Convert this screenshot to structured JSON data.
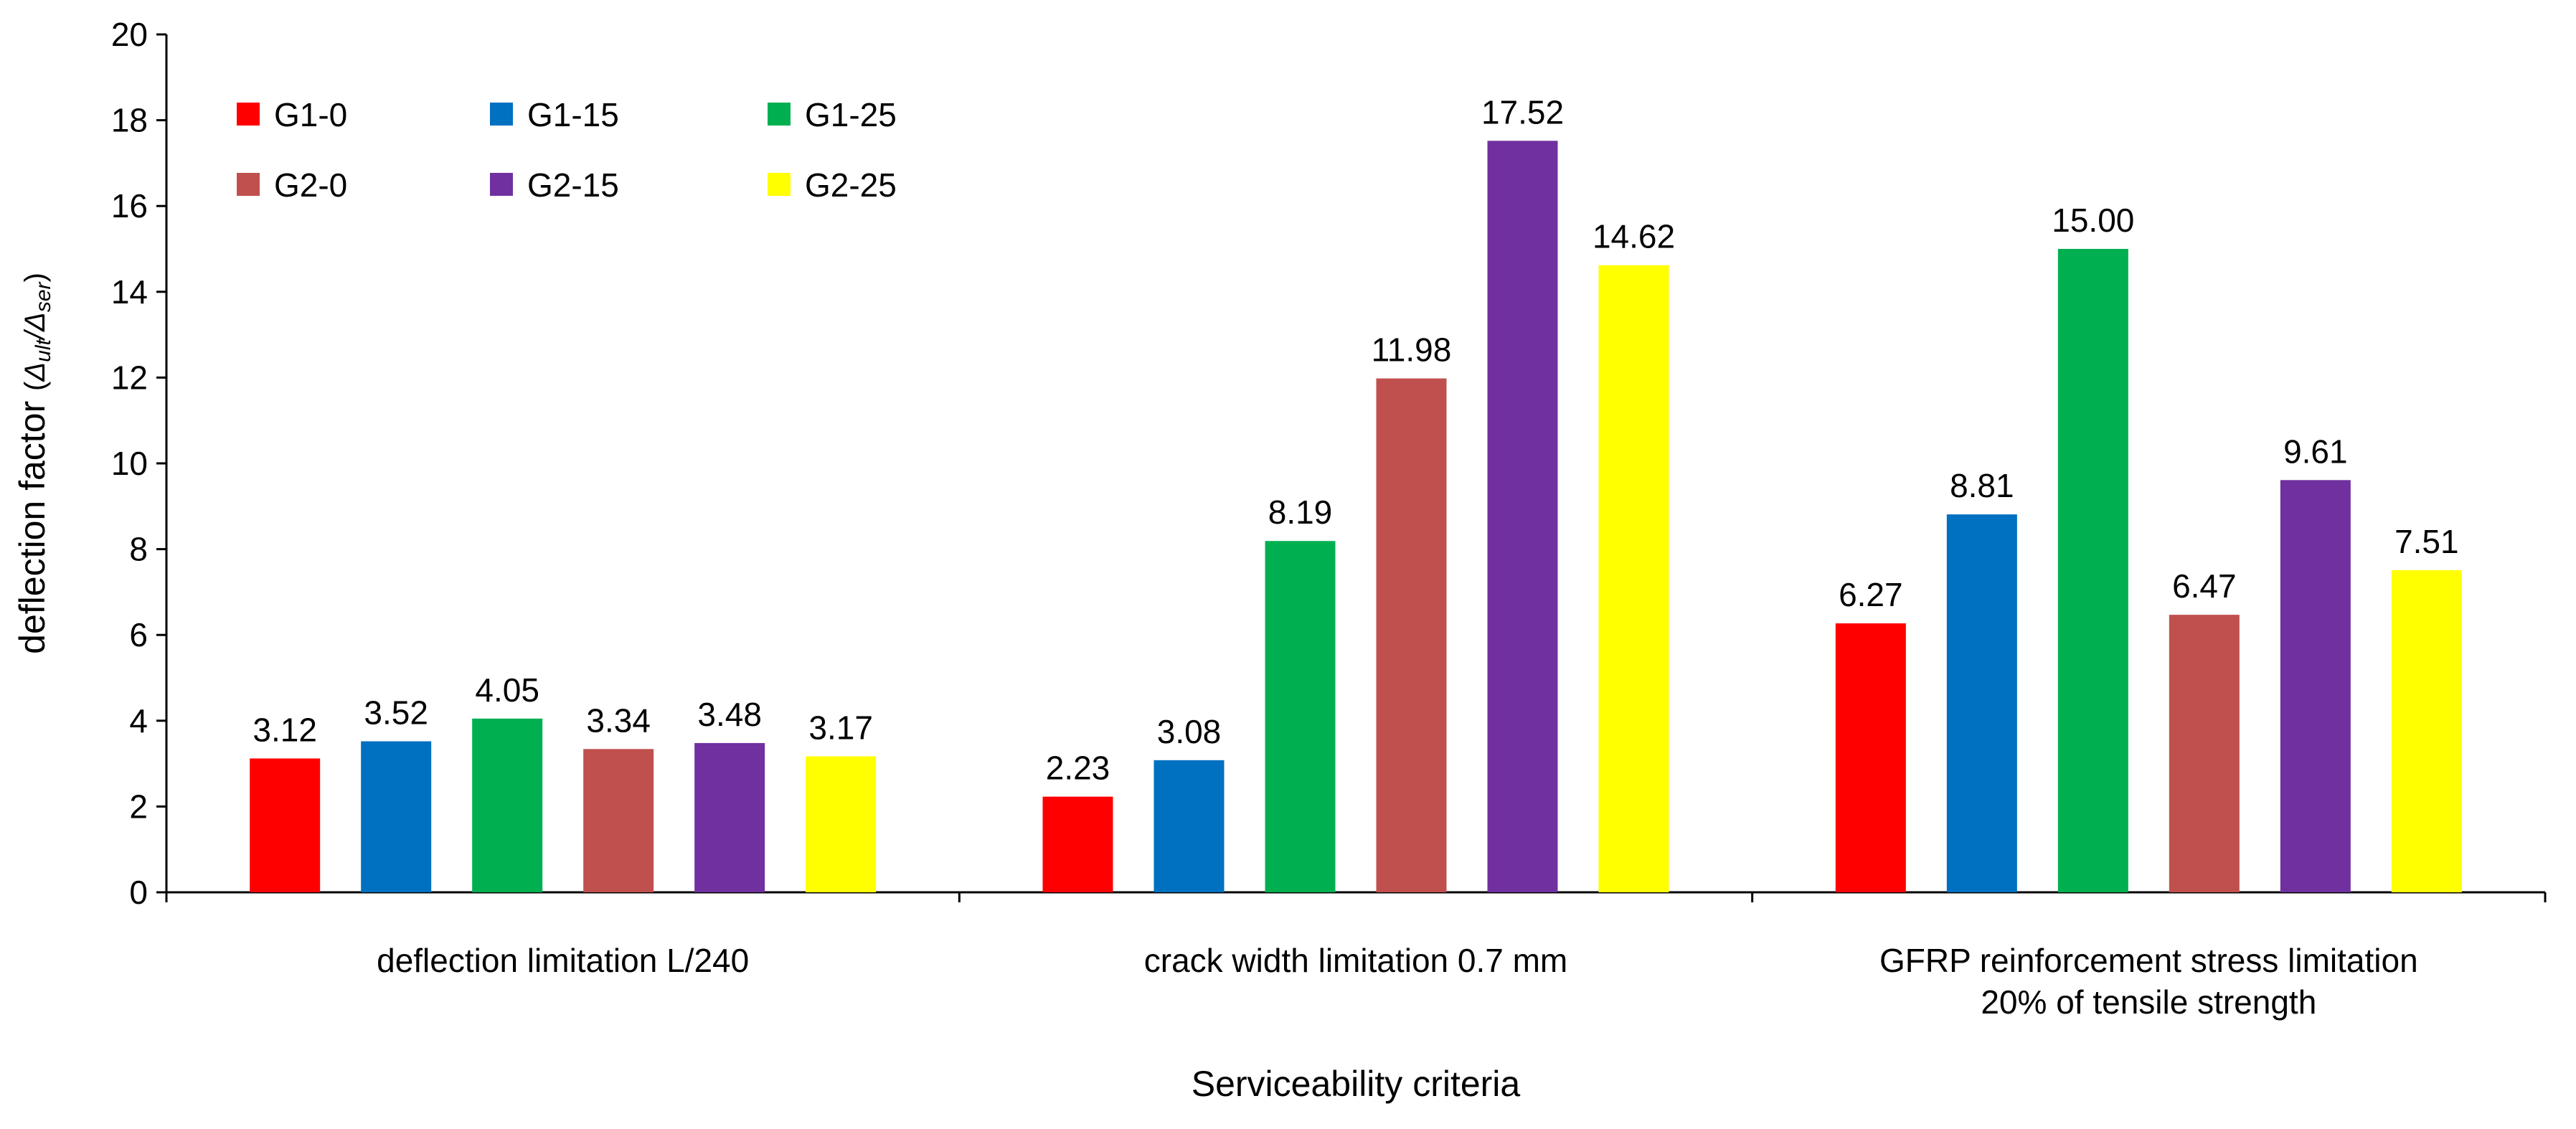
{
  "chart_data": {
    "type": "bar",
    "title": "",
    "xlabel": "Serviceability criteria",
    "ylabel": {
      "main": "deflection factor ",
      "open": "(",
      "num": "Δ",
      "num_sub": "ult",
      "slash": "/",
      "den": "Δ",
      "den_sub": "ser",
      "close": ")"
    },
    "ylim": [
      0,
      20
    ],
    "yticks": [
      0,
      2,
      4,
      6,
      8,
      10,
      12,
      14,
      16,
      18,
      20
    ],
    "grid": false,
    "legend_position": "top-left",
    "categories": [
      [
        "deflection limitation L/240"
      ],
      [
        "crack width limitation 0.7 mm"
      ],
      [
        "GFRP reinforcement stress limitation",
        "20% of tensile strength"
      ]
    ],
    "series": [
      {
        "name": "G1-0",
        "color": "#ff0000",
        "values": [
          3.12,
          2.23,
          6.27
        ],
        "labels": [
          "3.12",
          "2.23",
          "6.27"
        ]
      },
      {
        "name": "G1-15",
        "color": "#0070c0",
        "values": [
          3.52,
          3.08,
          8.81
        ],
        "labels": [
          "3.52",
          "3.08",
          "8.81"
        ]
      },
      {
        "name": "G1-25",
        "color": "#00b050",
        "values": [
          4.05,
          8.19,
          15.0
        ],
        "labels": [
          "4.05",
          "8.19",
          "15.00"
        ]
      },
      {
        "name": "G2-0",
        "color": "#c0504d",
        "values": [
          3.34,
          11.98,
          6.47
        ],
        "labels": [
          "3.34",
          "11.98",
          "6.47"
        ]
      },
      {
        "name": "G2-15",
        "color": "#7030a0",
        "values": [
          3.48,
          17.52,
          9.61
        ],
        "labels": [
          "3.48",
          "17.52",
          "9.61"
        ]
      },
      {
        "name": "G2-25",
        "color": "#ffff00",
        "values": [
          3.17,
          14.62,
          7.51
        ],
        "labels": [
          "3.17",
          "14.62",
          "7.51"
        ]
      }
    ]
  }
}
